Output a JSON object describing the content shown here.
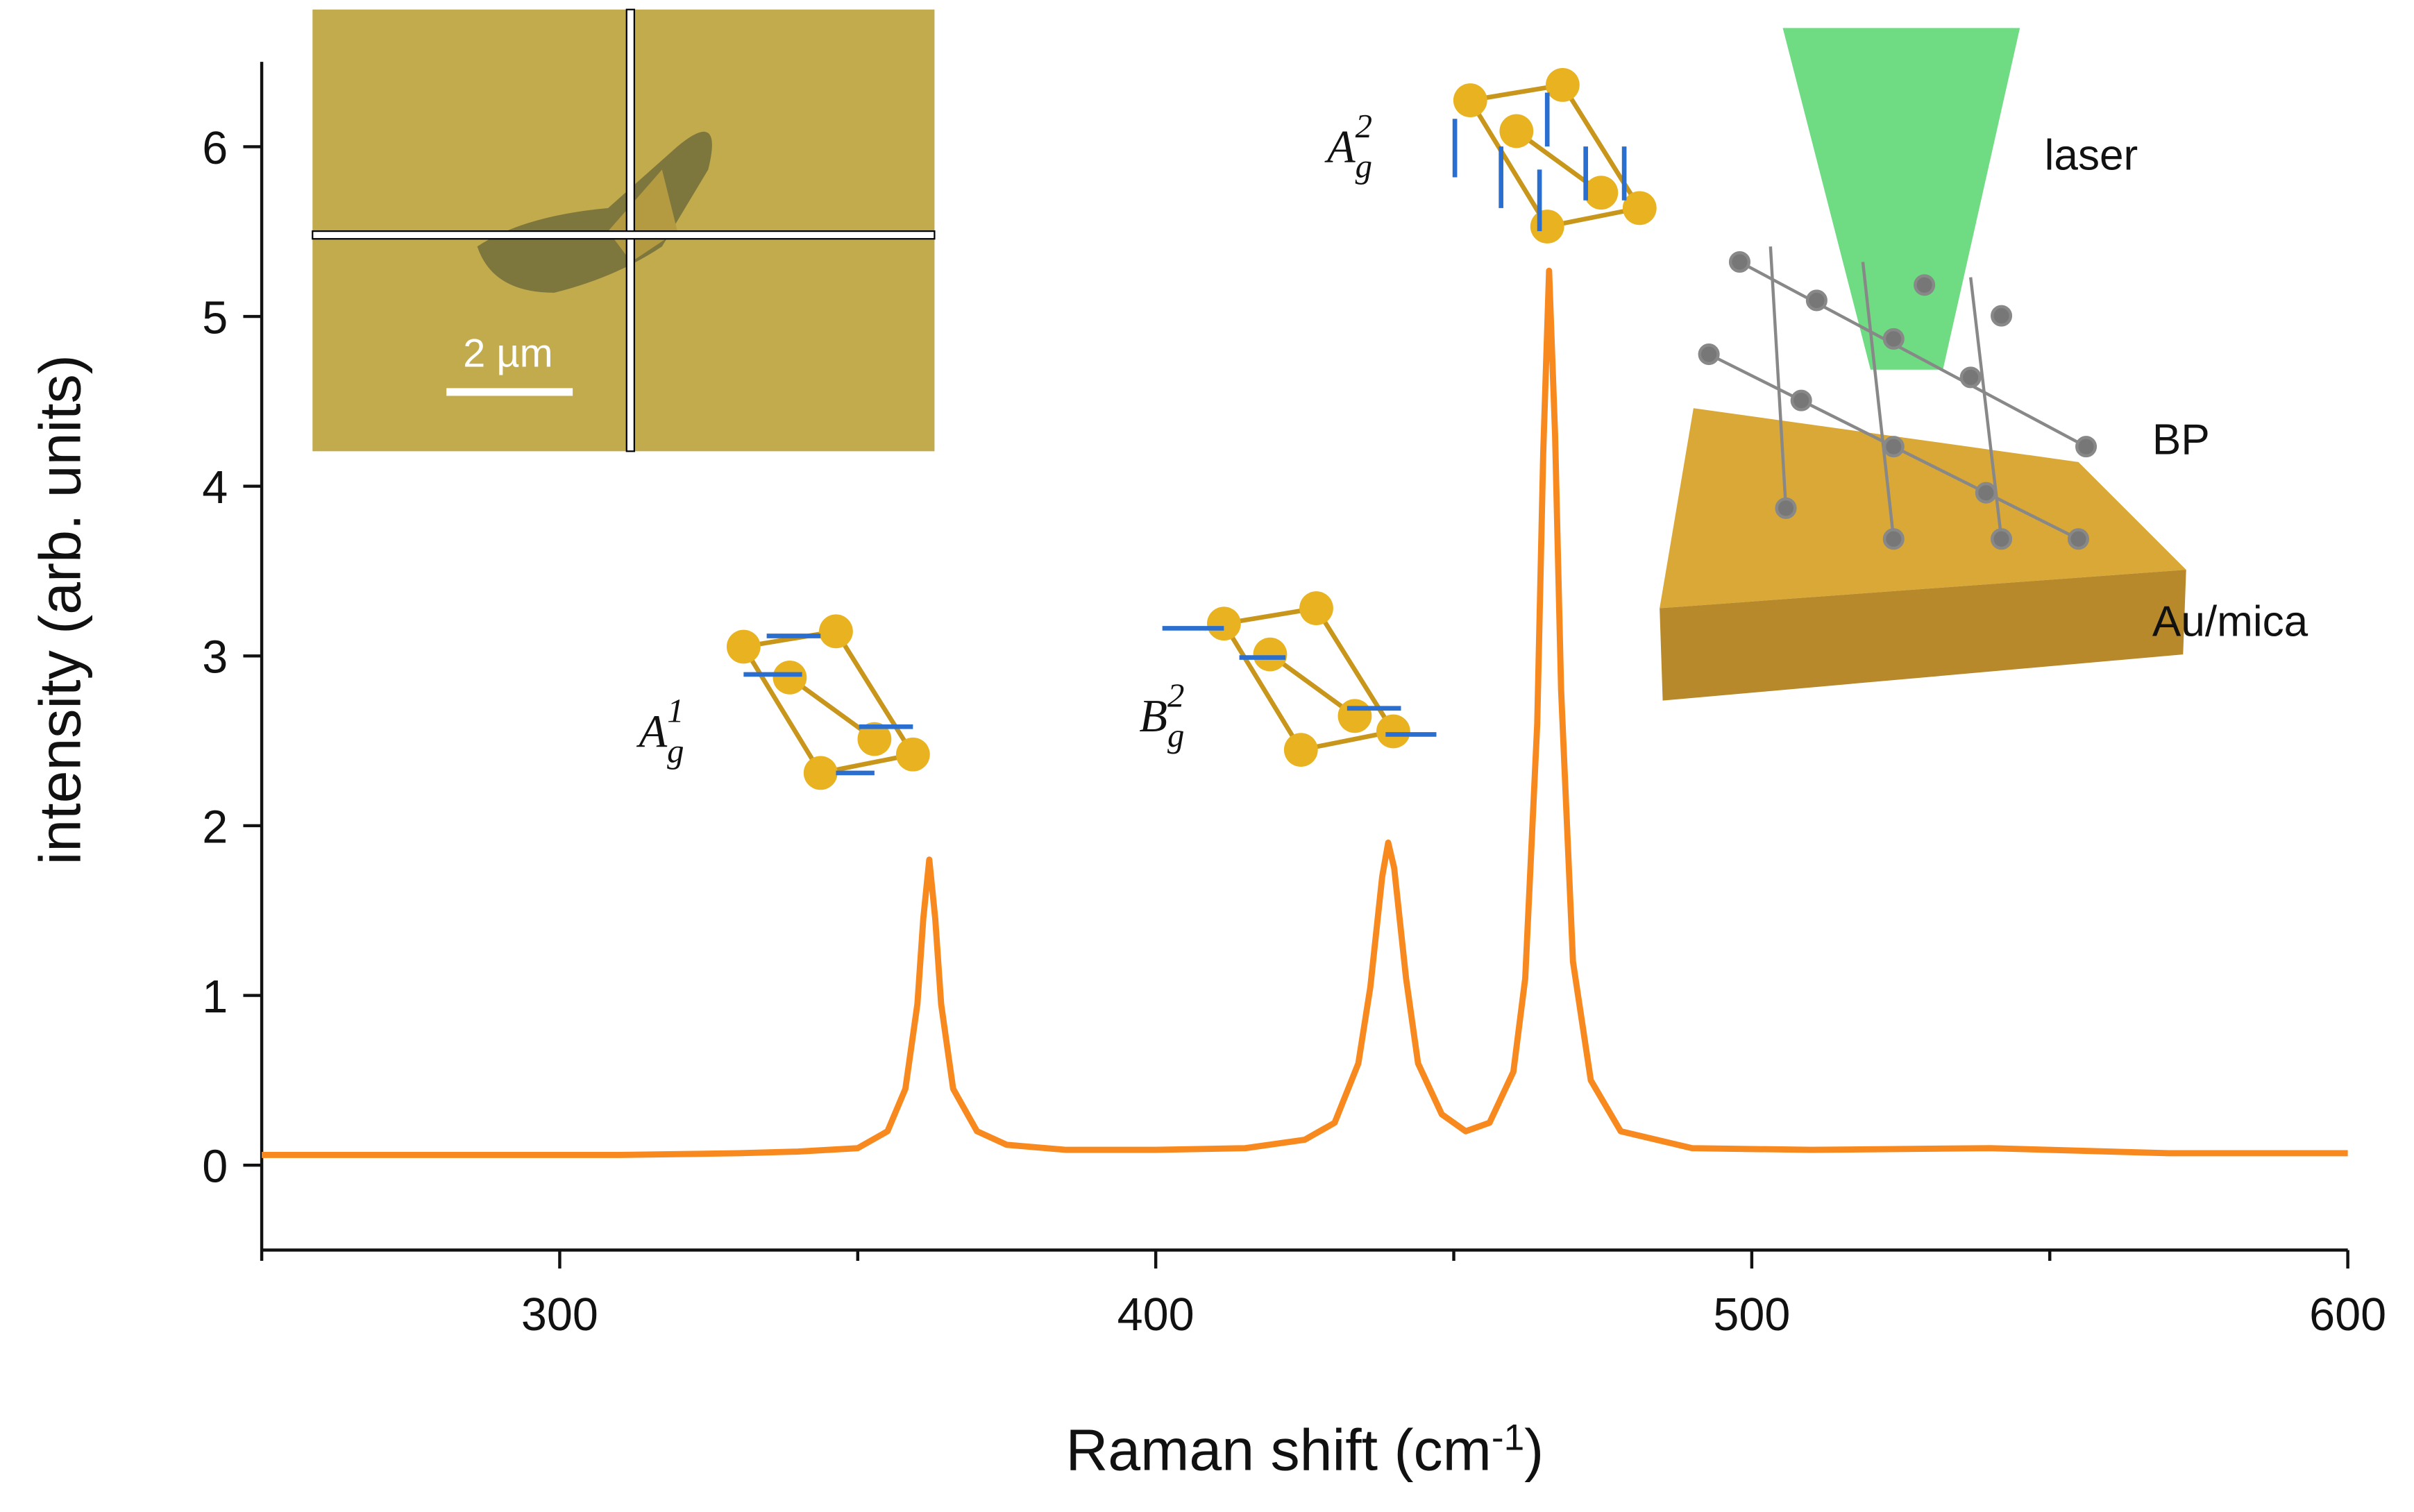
{
  "chart_data": {
    "type": "line",
    "xlabel": {
      "text": "Raman shift (cm",
      "sup": "-1",
      "after": ")"
    },
    "ylabel": "intensity (arb. units)",
    "x": [
      250,
      270,
      290,
      310,
      330,
      340,
      350,
      355,
      358,
      360,
      361,
      362,
      363,
      364,
      366,
      370,
      375,
      385,
      400,
      415,
      425,
      430,
      434,
      436,
      438,
      439,
      440,
      442,
      444,
      448,
      452,
      456,
      460,
      462,
      464,
      465,
      466,
      467,
      468,
      470,
      473,
      478,
      490,
      510,
      540,
      570,
      600
    ],
    "series": [
      {
        "color": "#f7891f",
        "values": [
          0.06,
          0.06,
          0.06,
          0.06,
          0.07,
          0.08,
          0.1,
          0.2,
          0.45,
          0.95,
          1.45,
          1.8,
          1.45,
          0.95,
          0.45,
          0.2,
          0.12,
          0.09,
          0.09,
          0.1,
          0.15,
          0.25,
          0.6,
          1.05,
          1.7,
          1.9,
          1.75,
          1.1,
          0.6,
          0.3,
          0.2,
          0.25,
          0.55,
          1.1,
          2.6,
          4.2,
          5.27,
          4.3,
          2.8,
          1.2,
          0.5,
          0.2,
          0.1,
          0.09,
          0.1,
          0.07,
          0.07
        ]
      }
    ],
    "xlim": [
      250,
      600
    ],
    "ylim": [
      -0.5,
      6.5
    ],
    "xticks": [
      300,
      400,
      500,
      600
    ],
    "xminorticks": [
      250,
      350,
      450,
      550
    ],
    "yticks": [
      0,
      1,
      2,
      3,
      4,
      5,
      6
    ],
    "annotations": [
      {
        "base": "A",
        "sub": "g",
        "sup": "1"
      },
      {
        "base": "B",
        "sub": "g",
        "sup": "2"
      },
      {
        "base": "A",
        "sub": "g",
        "sup": "2"
      }
    ],
    "inset_labels": {
      "scale_bar": "2 µm",
      "laser": "laser",
      "material": "BP",
      "substrate": "Au/mica"
    }
  }
}
